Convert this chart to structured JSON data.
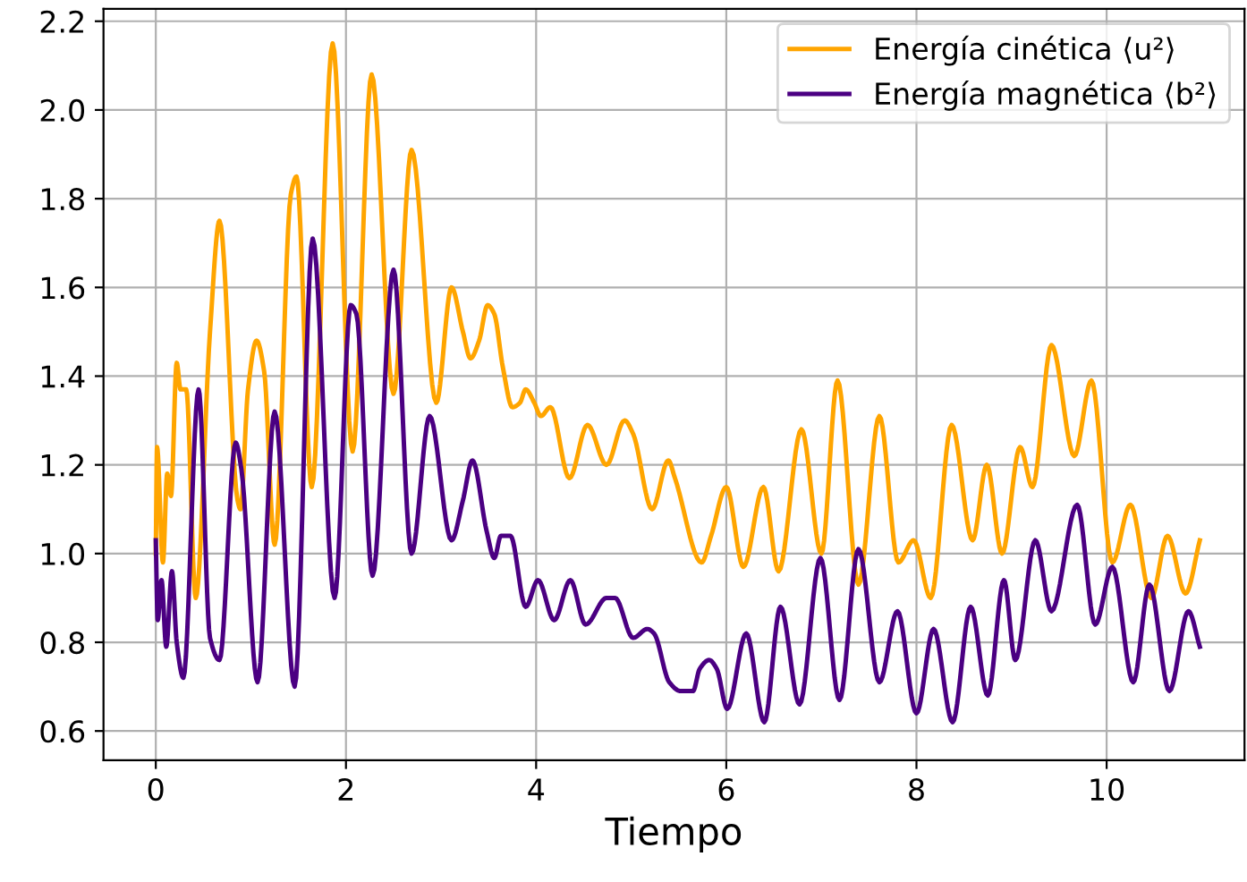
{
  "chart_data": {
    "type": "line",
    "xlabel": "Tiempo",
    "xlim": [
      -0.55,
      11.45
    ],
    "ylim": [
      0.534,
      2.228
    ],
    "xticks": [
      0,
      2,
      4,
      6,
      8,
      10
    ],
    "yticks": [
      0.6,
      0.8,
      {
        "value": 1,
        "label": "1.0"
      },
      1.2,
      1.4,
      1.6,
      1.8,
      {
        "value": 2,
        "label": "2.0"
      },
      2.2
    ],
    "grid": true,
    "legend": "top right",
    "series": [
      {
        "name": "Energía cinética ⟨u²⟩",
        "color": "#ffa500",
        "x": [
          0,
          0.013,
          0.075,
          0.12,
          0.16,
          0.22,
          0.26,
          0.32,
          0.42,
          0.57,
          0.67,
          0.86,
          0.89,
          0.97,
          1.06,
          1.14,
          1.25,
          1.42,
          1.48,
          1.64,
          1.86,
          2.07,
          2.27,
          2.5,
          2.69,
          2.95,
          3.11,
          3.23,
          3.31,
          3.4,
          3.49,
          3.56,
          3.65,
          3.75,
          3.83,
          3.89,
          3.98,
          4.05,
          4.15,
          4.35,
          4.54,
          4.74,
          4.93,
          5.02,
          5.22,
          5.39,
          5.46,
          5.74,
          5.84,
          6.0,
          6.18,
          6.39,
          6.55,
          6.79,
          7.0,
          7.17,
          7.39,
          7.61,
          7.81,
          7.97,
          8.15,
          8.37,
          8.59,
          8.74,
          8.9,
          9.09,
          9.22,
          9.42,
          9.66,
          9.84,
          10.06,
          10.25,
          10.47,
          10.64,
          10.83,
          10.98
        ],
        "values": [
          1.0,
          1.24,
          0.98,
          1.18,
          1.13,
          1.43,
          1.37,
          1.37,
          0.9,
          1.5,
          1.75,
          1.12,
          1.1,
          1.37,
          1.48,
          1.41,
          1.02,
          1.81,
          1.85,
          1.15,
          2.15,
          1.23,
          2.08,
          1.36,
          1.91,
          1.34,
          1.6,
          1.5,
          1.44,
          1.48,
          1.56,
          1.54,
          1.42,
          1.33,
          1.34,
          1.37,
          1.34,
          1.31,
          1.33,
          1.17,
          1.29,
          1.2,
          1.3,
          1.27,
          1.1,
          1.21,
          1.17,
          0.98,
          1.04,
          1.15,
          0.97,
          1.15,
          0.96,
          1.28,
          1.0,
          1.39,
          0.93,
          1.31,
          0.98,
          1.03,
          0.9,
          1.29,
          1.03,
          1.2,
          1.0,
          1.24,
          1.15,
          1.47,
          1.22,
          1.39,
          0.98,
          1.11,
          0.9,
          1.04,
          0.91,
          1.03
        ]
      },
      {
        "name": "Energía magnética ⟨b²⟩",
        "color": "#4b0082",
        "x": [
          0,
          0.02,
          0.06,
          0.11,
          0.17,
          0.22,
          0.29,
          0.45,
          0.57,
          0.67,
          0.84,
          0.9,
          1.07,
          1.25,
          1.46,
          1.65,
          1.88,
          2.05,
          2.11,
          2.28,
          2.5,
          2.69,
          2.88,
          3.11,
          3.23,
          3.33,
          3.48,
          3.56,
          3.63,
          3.73,
          3.89,
          4.02,
          4.19,
          4.36,
          4.52,
          4.74,
          4.83,
          5.02,
          5.17,
          5.24,
          5.4,
          5.52,
          5.65,
          5.72,
          5.82,
          5.9,
          6.01,
          6.21,
          6.4,
          6.57,
          6.77,
          6.99,
          7.19,
          7.39,
          7.61,
          7.8,
          8.0,
          8.18,
          8.38,
          8.57,
          8.75,
          8.92,
          9.04,
          9.25,
          9.42,
          9.69,
          9.88,
          10.06,
          10.28,
          10.45,
          10.66,
          10.86,
          10.98
        ],
        "values": [
          1.03,
          0.85,
          0.94,
          0.79,
          0.96,
          0.8,
          0.72,
          1.37,
          0.81,
          0.76,
          1.25,
          1.19,
          0.71,
          1.32,
          0.7,
          1.71,
          0.9,
          1.56,
          1.54,
          0.95,
          1.64,
          1.0,
          1.31,
          1.03,
          1.12,
          1.21,
          1.05,
          0.99,
          1.04,
          1.04,
          0.88,
          0.94,
          0.85,
          0.94,
          0.84,
          0.9,
          0.9,
          0.81,
          0.83,
          0.82,
          0.71,
          0.69,
          0.69,
          0.74,
          0.76,
          0.74,
          0.65,
          0.82,
          0.62,
          0.88,
          0.66,
          0.99,
          0.67,
          1.01,
          0.71,
          0.87,
          0.64,
          0.83,
          0.62,
          0.88,
          0.68,
          0.94,
          0.76,
          1.03,
          0.87,
          1.11,
          0.84,
          0.97,
          0.71,
          0.93,
          0.69,
          0.87,
          0.79
        ]
      }
    ]
  }
}
